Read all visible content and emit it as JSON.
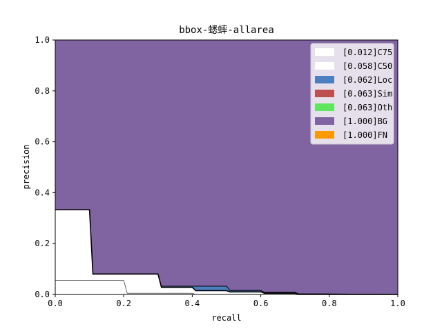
{
  "chart_data": {
    "type": "area",
    "title": "bbox-蟋蟀-allarea",
    "xlabel": "recall",
    "ylabel": "precision",
    "xlim": [
      0.0,
      1.0
    ],
    "ylim": [
      0.0,
      1.0
    ],
    "xticks": [
      "0.0",
      "0.2",
      "0.4",
      "0.6",
      "0.8",
      "1.0"
    ],
    "yticks": [
      "0.0",
      "0.2",
      "0.4",
      "0.6",
      "0.8",
      "1.0"
    ],
    "grid": false,
    "legend_position": "top-right",
    "stack_order": [
      "[0.012]C75",
      "[0.058]C50",
      "[0.062]Loc",
      "[0.063]Sim",
      "[0.063]Oth",
      "[1.000]BG",
      "[1.000]FN"
    ],
    "series": [
      {
        "name": "[0.012]C75",
        "color": "#ffffff",
        "x": [
          0.0,
          0.2,
          0.21,
          0.3,
          0.31,
          0.4,
          0.41,
          1.0
        ],
        "y": [
          0.055,
          0.055,
          0.005,
          0.005,
          0.005,
          0.005,
          0.0,
          0.0
        ]
      },
      {
        "name": "[0.058]C50",
        "color": "#ffffff",
        "x": [
          0.0,
          0.1,
          0.11,
          0.3,
          0.31,
          0.4,
          0.41,
          0.5,
          0.51,
          0.6,
          0.61,
          0.7,
          0.71,
          1.0
        ],
        "y": [
          0.333,
          0.333,
          0.08,
          0.08,
          0.028,
          0.028,
          0.015,
          0.015,
          0.01,
          0.01,
          0.005,
          0.005,
          0.0,
          0.0
        ]
      },
      {
        "name": "[0.062]Loc",
        "color": "#4c7fbf",
        "x": [
          0.0,
          0.1,
          0.11,
          0.3,
          0.31,
          0.4,
          0.41,
          0.5,
          0.51,
          0.6,
          0.61,
          0.7,
          0.71,
          1.0
        ],
        "y": [
          0.333,
          0.333,
          0.08,
          0.08,
          0.032,
          0.032,
          0.032,
          0.032,
          0.015,
          0.015,
          0.008,
          0.008,
          0.002,
          0.001
        ]
      },
      {
        "name": "[0.063]Sim",
        "color": "#c0504d",
        "x": [
          0.0,
          0.1,
          0.11,
          0.3,
          0.31,
          0.4,
          0.41,
          0.5,
          0.51,
          0.6,
          0.61,
          0.7,
          0.71,
          1.0
        ],
        "y": [
          0.334,
          0.334,
          0.081,
          0.081,
          0.033,
          0.033,
          0.033,
          0.033,
          0.016,
          0.016,
          0.009,
          0.009,
          0.003,
          0.001
        ]
      },
      {
        "name": "[0.063]Oth",
        "color": "#5ee65e",
        "x": [
          0.0,
          0.1,
          0.11,
          0.3,
          0.31,
          0.4,
          0.41,
          0.5,
          0.51,
          0.6,
          0.61,
          0.7,
          0.71,
          1.0
        ],
        "y": [
          0.334,
          0.334,
          0.081,
          0.081,
          0.033,
          0.033,
          0.033,
          0.033,
          0.016,
          0.016,
          0.009,
          0.009,
          0.003,
          0.001
        ]
      },
      {
        "name": "[1.000]BG",
        "color": "#8064a2",
        "x": [
          0.0,
          1.0
        ],
        "y": [
          1.0,
          1.0
        ]
      },
      {
        "name": "[1.000]FN",
        "color": "#ff9900",
        "x": [
          0.0,
          1.0
        ],
        "y": [
          1.0,
          1.0
        ]
      }
    ]
  }
}
